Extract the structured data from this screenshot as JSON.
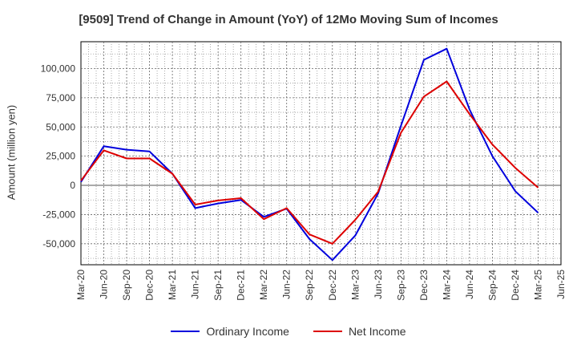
{
  "chart_data": {
    "type": "line",
    "title": "[9509]  Trend of Change in Amount (YoY) of 12Mo Moving Sum of Incomes",
    "xlabel": "",
    "ylabel": "Amount (million yen)",
    "x": [
      "Mar-20",
      "Jun-20",
      "Sep-20",
      "Dec-20",
      "Mar-21",
      "Jun-21",
      "Sep-21",
      "Dec-21",
      "Mar-22",
      "Jun-22",
      "Sep-22",
      "Dec-22",
      "Mar-23",
      "Jun-23",
      "Sep-23",
      "Dec-23",
      "Mar-24",
      "Jun-24",
      "Sep-24",
      "Dec-24",
      "Mar-25",
      "Jun-25"
    ],
    "ylim": [
      -68000,
      123000
    ],
    "yticks": [
      -50000,
      -25000,
      0,
      25000,
      50000,
      75000,
      100000
    ],
    "ytick_labels": [
      "-50,000",
      "-25,000",
      "0",
      "25,000",
      "50,000",
      "75,000",
      "100,000"
    ],
    "grid": true,
    "legend_position": "bottom",
    "series": [
      {
        "name": "Ordinary Income",
        "color": "#0000dd",
        "values": [
          3000,
          33500,
          30500,
          29000,
          10000,
          -19500,
          -15500,
          -12500,
          -27000,
          -20000,
          -46000,
          -64000,
          -43000,
          -7000,
          51000,
          107500,
          117000,
          65000,
          25000,
          -5000,
          -23500,
          null
        ]
      },
      {
        "name": "Net Income",
        "color": "#dd0000",
        "values": [
          4000,
          30000,
          23000,
          23000,
          10000,
          -16500,
          -13000,
          -11000,
          -29000,
          -19500,
          -42000,
          -50000,
          -29500,
          -5500,
          45000,
          76000,
          89000,
          61000,
          35000,
          15000,
          -2000,
          null
        ]
      }
    ]
  }
}
